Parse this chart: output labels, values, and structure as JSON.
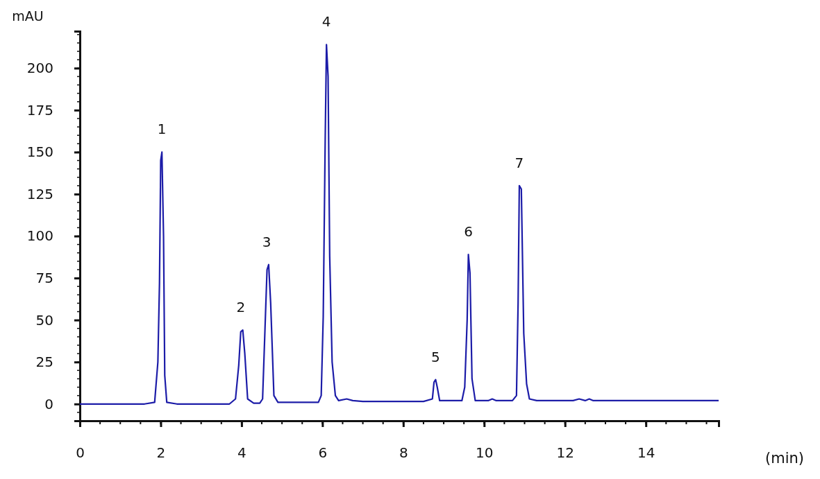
{
  "chart_data": {
    "type": "line",
    "xlabel": "(min)",
    "ylabel": "mAU",
    "xlim": [
      0,
      15.8
    ],
    "xticks": [
      0,
      2,
      4,
      6,
      8,
      10,
      12,
      14
    ],
    "ylim": [
      -10,
      222
    ],
    "yticks": [
      0,
      25,
      50,
      75,
      100,
      125,
      150,
      175,
      200
    ],
    "grid": false,
    "marker": "none",
    "line_style": "solid",
    "series": [
      {
        "color": "#1c1ca8",
        "x": [
          0,
          1.6,
          1.85,
          1.93,
          1.97,
          2.0,
          2.03,
          2.07,
          2.1,
          2.15,
          2.4,
          3.7,
          3.85,
          3.93,
          3.98,
          4.03,
          4.08,
          4.15,
          4.3,
          4.45,
          4.52,
          4.58,
          4.63,
          4.67,
          4.72,
          4.8,
          4.9,
          5.9,
          5.97,
          6.02,
          6.07,
          6.1,
          6.14,
          6.18,
          6.24,
          6.32,
          6.4,
          6.6,
          6.75,
          7,
          8.5,
          8.72,
          8.76,
          8.8,
          8.84,
          8.9,
          9.3,
          9.45,
          9.52,
          9.58,
          9.61,
          9.65,
          9.7,
          9.78,
          10.1,
          10.2,
          10.3,
          10.7,
          10.8,
          10.84,
          10.87,
          10.92,
          10.98,
          11.05,
          11.12,
          11.3,
          12.2,
          12.35,
          12.5,
          12.6,
          12.7,
          15.8
        ],
        "values": [
          0,
          0,
          1,
          25,
          72,
          145,
          150,
          100,
          17,
          1,
          0,
          0,
          3,
          23,
          43,
          44,
          30,
          3,
          0.5,
          0.5,
          3,
          45,
          80,
          83,
          60,
          5,
          1,
          1,
          5,
          52,
          160,
          214,
          195,
          88,
          25,
          5,
          2,
          3,
          2,
          1.5,
          1.5,
          3,
          13,
          14.5,
          10,
          2,
          2,
          2,
          10,
          50,
          89,
          78,
          15,
          2,
          2,
          3,
          2,
          2,
          5,
          60,
          130,
          128,
          42,
          12,
          3,
          2,
          2,
          3,
          2,
          3,
          2,
          2
        ]
      }
    ],
    "annotations": [
      {
        "text": "1",
        "x": 2.03,
        "y": 150
      },
      {
        "text": "2",
        "x": 3.98,
        "y": 44
      },
      {
        "text": "3",
        "x": 4.62,
        "y": 83
      },
      {
        "text": "4",
        "x": 6.1,
        "y": 214
      },
      {
        "text": "5",
        "x": 8.8,
        "y": 14.5
      },
      {
        "text": "6",
        "x": 9.61,
        "y": 89
      },
      {
        "text": "7",
        "x": 10.87,
        "y": 130
      }
    ]
  }
}
